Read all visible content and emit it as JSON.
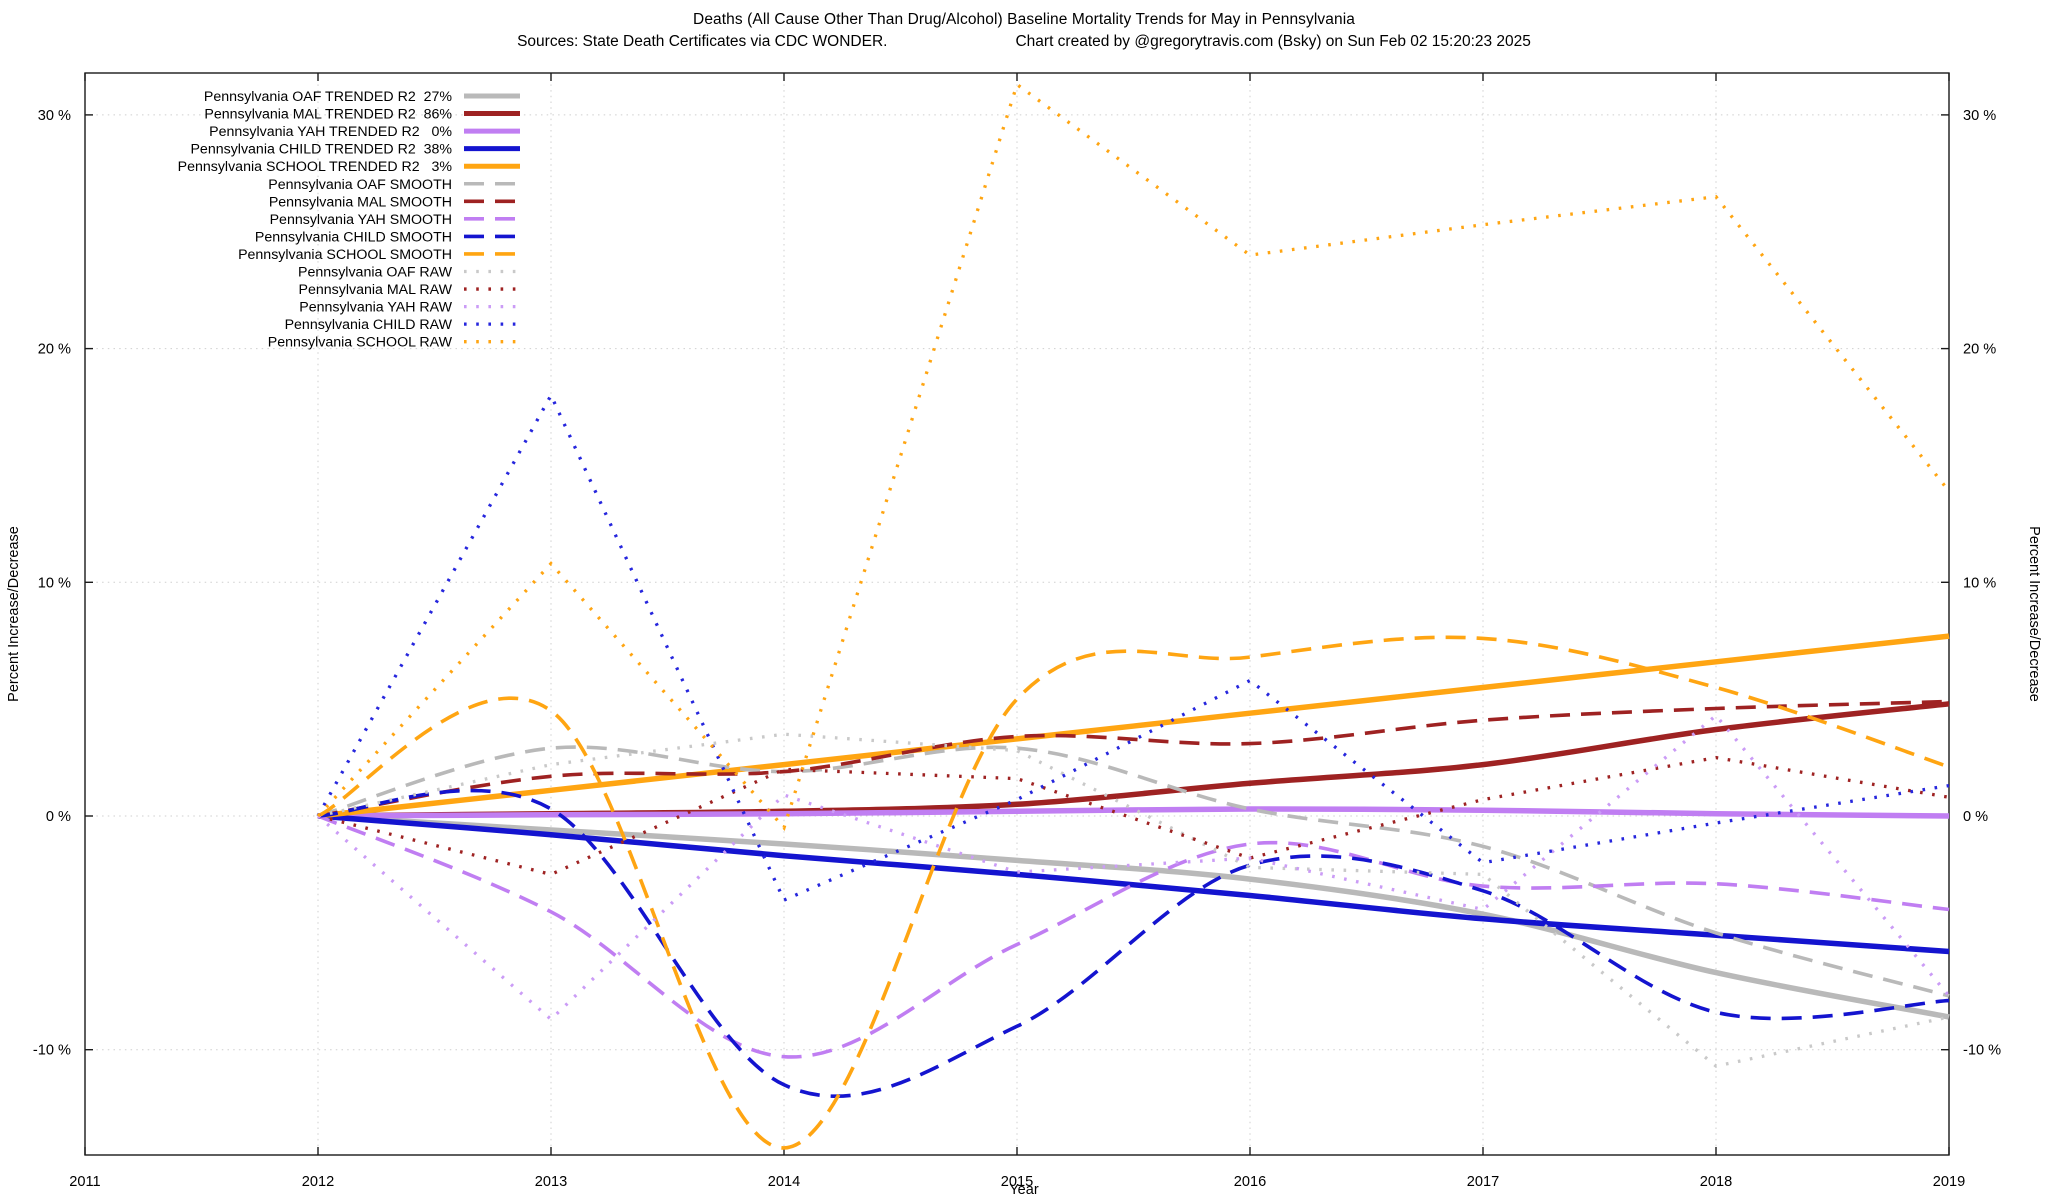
{
  "header": {
    "title": "Deaths (All Cause Other Than Drug/Alcohol)  Baseline Mortality Trends for May in Pennsylvania",
    "subtitle_sources": "Sources: State Death Certificates via CDC WONDER.",
    "subtitle_credit": "Chart created by @gregorytravis.com (Bsky) on Sun Feb 02 15:20:23 2025"
  },
  "chart_data": {
    "type": "line",
    "title": "Deaths (All Cause Other Than Drug/Alcohol)  Baseline Mortality Trends for May in Pennsylvania",
    "xlabel": "Year",
    "ylabel_left": "Percent Increase/Decrease",
    "ylabel_right": "Percent Increase/Decrease",
    "x": [
      2012,
      2013,
      2014,
      2015,
      2016,
      2017,
      2018,
      2019
    ],
    "x_ticks": [
      "2011",
      "2012",
      "2013",
      "2014",
      "2015",
      "2016",
      "2017",
      "2018",
      "2019"
    ],
    "y_ticks": [
      {
        "label": "30 %",
        "value": 30
      },
      {
        "label": "20 %",
        "value": 20
      },
      {
        "label": "10 %",
        "value": 10
      },
      {
        "label": "0 %",
        "value": 0
      },
      {
        "label": "-10 %",
        "value": -10
      }
    ],
    "xlim": [
      2011,
      2019
    ],
    "ylim": [
      -14.5,
      31.8
    ],
    "grid": true,
    "legend_position": "top-left",
    "series": [
      {
        "name": "Pennsylvania OAF TRENDED R2  27%",
        "group": "OAF",
        "role": "TRENDED",
        "r2_percent": 27,
        "color": "#b9b9b9",
        "line": "solid-thick",
        "values": [
          0,
          -0.6,
          -1.2,
          -1.9,
          -2.7,
          -4.2,
          -6.7,
          -8.6
        ]
      },
      {
        "name": "Pennsylvania MAL TRENDED R2  86%",
        "group": "MAL",
        "role": "TRENDED",
        "r2_percent": 86,
        "color": "#9e2222",
        "line": "solid-thick",
        "values": [
          0,
          0.1,
          0.2,
          0.5,
          1.4,
          2.2,
          3.7,
          4.8
        ]
      },
      {
        "name": "Pennsylvania YAH TRENDED R2   0%",
        "group": "YAH",
        "role": "TRENDED",
        "r2_percent": 0,
        "color": "#c07ef2",
        "line": "solid-thick",
        "values": [
          0,
          0.05,
          0.1,
          0.2,
          0.3,
          0.25,
          0.1,
          0
        ]
      },
      {
        "name": "Pennsylvania CHILD TRENDED R2  38%",
        "group": "CHILD",
        "role": "TRENDED",
        "r2_percent": 38,
        "color": "#1414cf",
        "line": "solid-thick",
        "values": [
          0,
          -0.8,
          -1.7,
          -2.5,
          -3.4,
          -4.4,
          -5.1,
          -5.8
        ]
      },
      {
        "name": "Pennsylvania SCHOOL TRENDED R2   3%",
        "group": "SCHOOL",
        "role": "TRENDED",
        "r2_percent": 3,
        "color": "#ffa512",
        "line": "solid-thick",
        "values": [
          0,
          1.1,
          2.2,
          3.3,
          4.4,
          5.5,
          6.6,
          7.7
        ]
      },
      {
        "name": "Pennsylvania OAF SMOOTH",
        "group": "OAF",
        "role": "SMOOTH",
        "color": "#b9b9b9",
        "line": "dashed",
        "values": [
          0,
          2.9,
          1.9,
          2.9,
          0.3,
          -1.3,
          -5.0,
          -7.7
        ]
      },
      {
        "name": "Pennsylvania MAL SMOOTH",
        "group": "MAL",
        "role": "SMOOTH",
        "color": "#9e2222",
        "line": "dashed",
        "values": [
          0,
          1.7,
          1.9,
          3.4,
          3.1,
          4.1,
          4.6,
          4.9
        ]
      },
      {
        "name": "Pennsylvania YAH SMOOTH",
        "group": "YAH",
        "role": "SMOOTH",
        "color": "#c07ef2",
        "line": "dashed",
        "values": [
          0,
          -4.1,
          -10.3,
          -5.5,
          -1.2,
          -3.0,
          -2.9,
          -4.0
        ]
      },
      {
        "name": "Pennsylvania CHILD SMOOTH",
        "group": "CHILD",
        "role": "SMOOTH",
        "color": "#1414cf",
        "line": "dashed",
        "values": [
          0,
          0.3,
          -11.5,
          -9.0,
          -2.1,
          -3.2,
          -8.4,
          -7.9
        ]
      },
      {
        "name": "Pennsylvania SCHOOL SMOOTH",
        "group": "SCHOOL",
        "role": "SMOOTH",
        "color": "#ffa512",
        "line": "dashed",
        "values": [
          0,
          4.5,
          -14.2,
          5.0,
          6.8,
          7.6,
          5.5,
          2.1
        ]
      },
      {
        "name": "Pennsylvania OAF RAW",
        "group": "OAF",
        "role": "RAW",
        "color": "#c9c9c9",
        "line": "dotted",
        "values": [
          0,
          2.2,
          3.5,
          2.8,
          -2.2,
          -2.5,
          -10.7,
          -8.6
        ]
      },
      {
        "name": "Pennsylvania MAL RAW",
        "group": "MAL",
        "role": "RAW",
        "color": "#9e2222",
        "line": "dotted",
        "values": [
          0,
          -2.5,
          2.0,
          1.6,
          -1.8,
          0.7,
          2.5,
          0.8
        ]
      },
      {
        "name": "Pennsylvania YAH RAW",
        "group": "YAH",
        "role": "RAW",
        "color": "#cb9cf6",
        "line": "dotted",
        "values": [
          0,
          -8.7,
          0.9,
          -2.4,
          -1.8,
          -4.0,
          4.3,
          -7.7
        ]
      },
      {
        "name": "Pennsylvania CHILD RAW",
        "group": "CHILD",
        "role": "RAW",
        "color": "#2626dd",
        "line": "dotted",
        "values": [
          0,
          18.0,
          -3.6,
          0.7,
          5.8,
          -2.0,
          -0.3,
          1.3
        ]
      },
      {
        "name": "Pennsylvania SCHOOL RAW",
        "group": "SCHOOL",
        "role": "RAW",
        "color": "#ffa512",
        "line": "dotted",
        "values": [
          0,
          10.8,
          -0.5,
          31.3,
          24.0,
          25.3,
          26.5,
          13.9
        ]
      }
    ]
  }
}
